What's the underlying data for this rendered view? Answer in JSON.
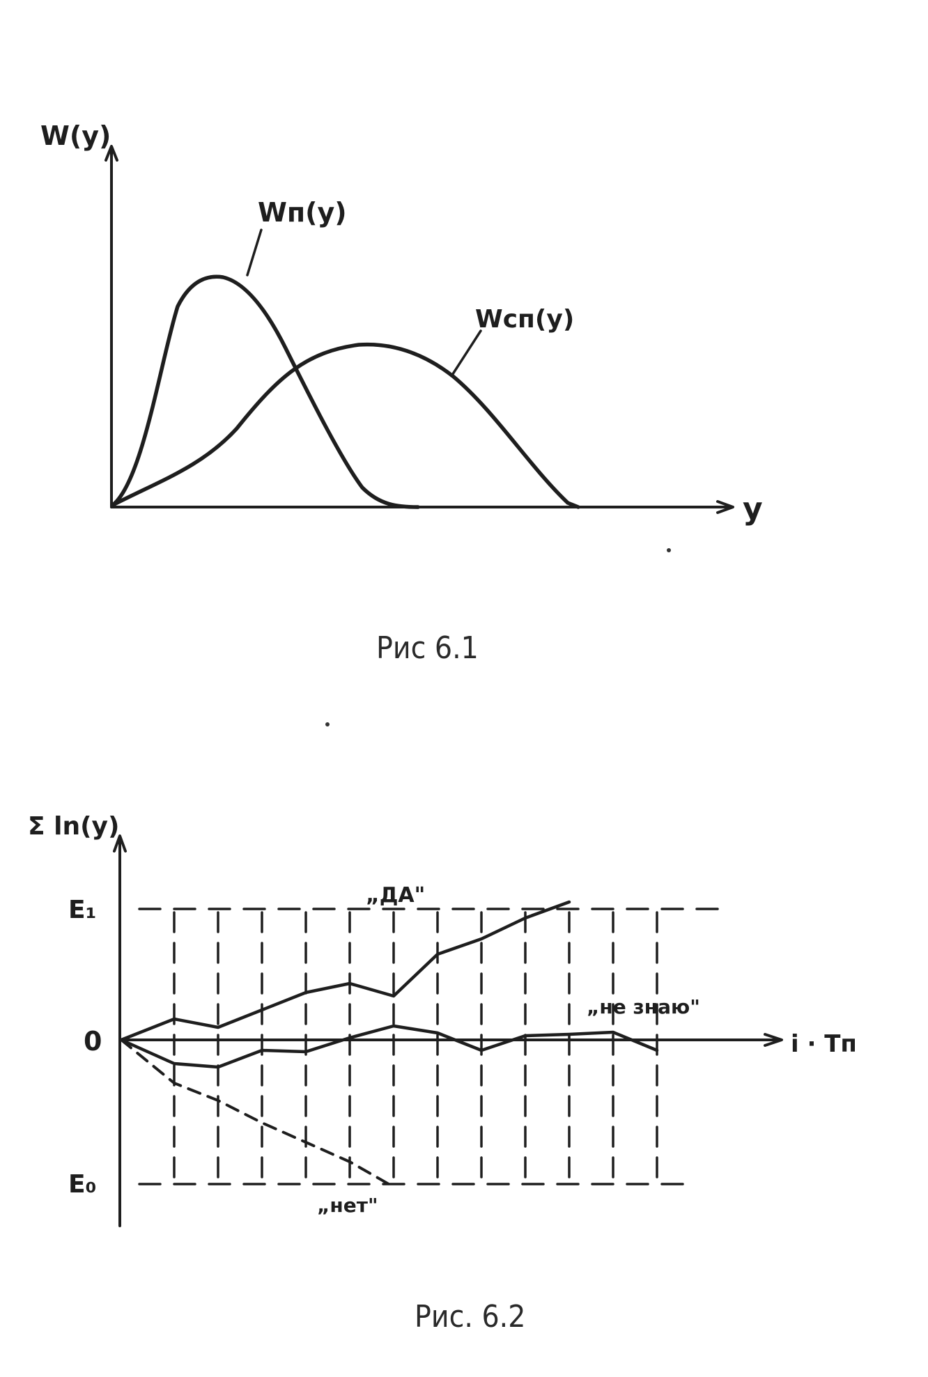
{
  "figure1": {
    "y_axis_label": "W(y)",
    "x_axis_label": "y",
    "curve_noise_label": "Wп(y)",
    "curve_signal_label": "Wсп(y)",
    "caption": "Рис 6.1"
  },
  "figure2": {
    "y_axis_label": "Σ ln(y)",
    "x_axis_label": "i · Tп",
    "upper_threshold_label": "Е₁",
    "zero_label": "0",
    "lower_threshold_label": "Е₀",
    "label_yes": "„ДА\"",
    "label_dont_know": "„не знаю\"",
    "label_no": "„нет\"",
    "caption": "Рис. 6.2"
  }
}
